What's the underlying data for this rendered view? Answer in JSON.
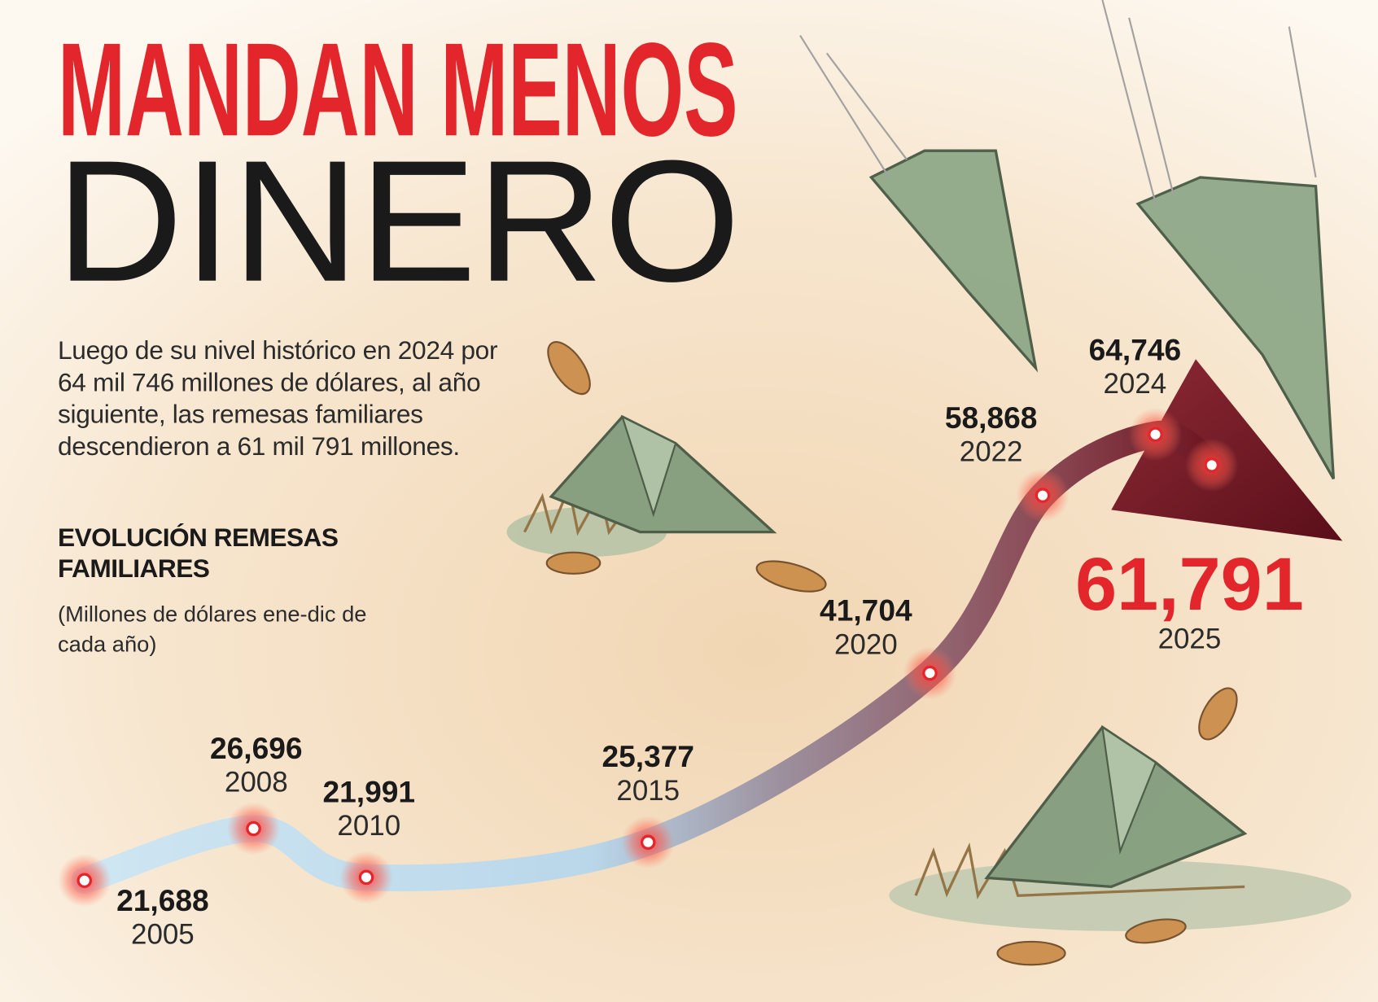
{
  "header": {
    "title_line1": "MANDAN MENOS",
    "title_line2": "DINERO",
    "description": "Luego de su nivel histórico en 2024 por 64 mil 746 millones de dólares, al año siguiente, las remesas familiares descendieron a 61 mil 791 millones."
  },
  "chart_data": {
    "type": "line",
    "title": "EVOLUCIÓN REMESAS FAMILIARES",
    "subtitle": "(Millones de dólares ene-dic de cada año)",
    "x": [
      2005,
      2008,
      2010,
      2015,
      2020,
      2022,
      2024,
      2025
    ],
    "values": [
      21688,
      26696,
      21991,
      25377,
      41704,
      58868,
      64746,
      61791
    ],
    "value_labels": [
      "21,688",
      "26,696",
      "21,991",
      "25,377",
      "41,704",
      "58,868",
      "64,746",
      "61,791"
    ],
    "color": "#e3262b"
  }
}
